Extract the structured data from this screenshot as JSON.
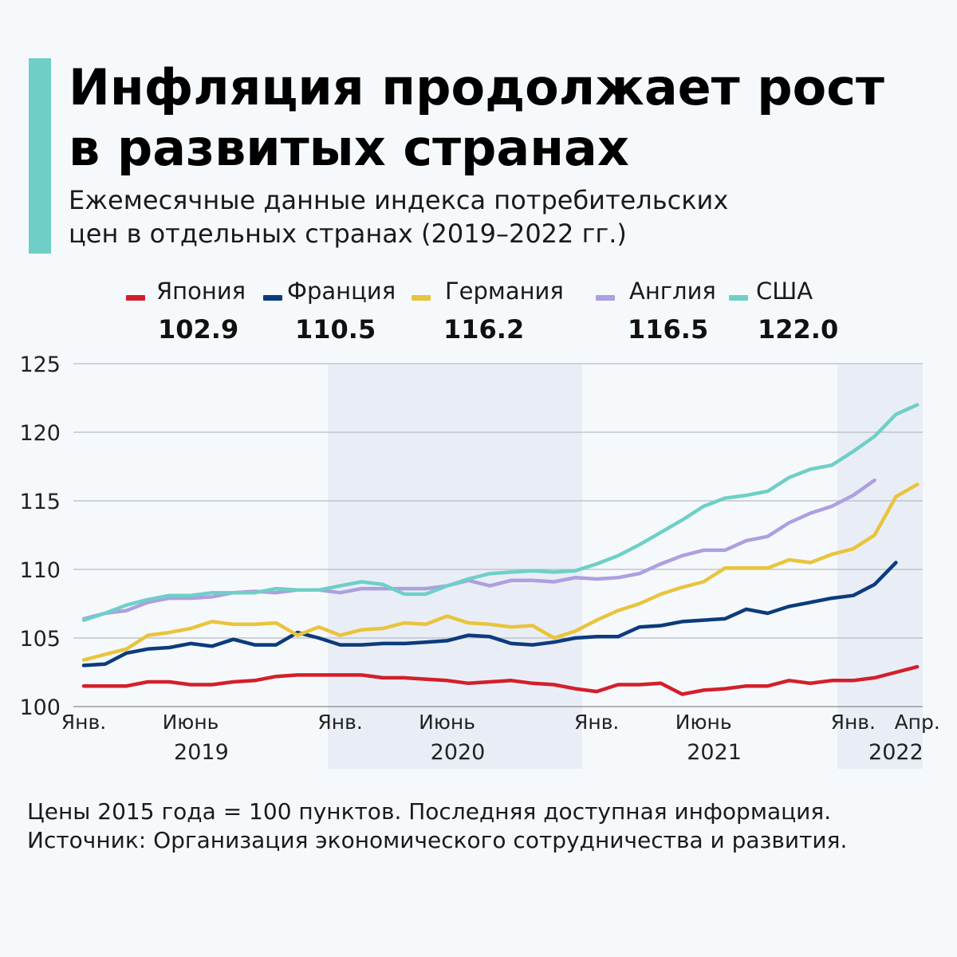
{
  "header": {
    "title_line1": "Инфляция продолжает рост",
    "title_line2": "в развитых странах",
    "subtitle_line1": "Ежемесячные данные индекса потребительских",
    "subtitle_line2": "цен в отдельных странах (2019–2022 гг.)",
    "accent_color": "#6fcfc8"
  },
  "legend": [
    {
      "name": "Япония",
      "value": "102.9",
      "color": "#d31f2b"
    },
    {
      "name": "Франция",
      "value": "110.5",
      "color": "#0c3b7d"
    },
    {
      "name": "Германия",
      "value": "116.2",
      "color": "#e9c43c"
    },
    {
      "name": "Англия",
      "value": "116.5",
      "color": "#ad9fe0"
    },
    {
      "name": "США",
      "value": "122.0",
      "color": "#6fcfc8"
    }
  ],
  "notes": {
    "line1": "Цены 2015 года = 100 пунктов. Последняя доступная информация.",
    "line2": "Источник: Организация экономического сотрудничества и развития."
  },
  "chart_data": {
    "type": "line",
    "ylim": [
      100,
      125
    ],
    "yticks": [
      100,
      105,
      110,
      115,
      120,
      125
    ],
    "grid": true,
    "legend_position": "top",
    "x_labels": [
      {
        "month_index": 0,
        "label": "Янв."
      },
      {
        "month_index": 5,
        "label": "Июнь"
      },
      {
        "month_index": 12,
        "label": "Янв."
      },
      {
        "month_index": 17,
        "label": "Июнь"
      },
      {
        "month_index": 24,
        "label": "Янв."
      },
      {
        "month_index": 29,
        "label": "Июнь"
      },
      {
        "month_index": 36,
        "label": "Янв."
      },
      {
        "month_index": 39,
        "label": "Апр."
      }
    ],
    "year_labels": [
      {
        "month_index": 5.5,
        "label": "2019"
      },
      {
        "month_index": 17.5,
        "label": "2020"
      },
      {
        "month_index": 29.5,
        "label": "2021"
      },
      {
        "month_index": 38,
        "label": "2022"
      }
    ],
    "shaded_years": [
      "2020",
      "2022"
    ],
    "series": [
      {
        "name": "Япония",
        "color": "#d31f2b",
        "values": [
          101.5,
          101.5,
          101.5,
          101.8,
          101.8,
          101.6,
          101.6,
          101.8,
          101.9,
          102.2,
          102.3,
          102.3,
          102.3,
          102.3,
          102.1,
          102.1,
          102.0,
          101.9,
          101.7,
          101.8,
          101.9,
          101.7,
          101.6,
          101.3,
          101.1,
          101.6,
          101.6,
          101.7,
          100.9,
          101.2,
          101.3,
          101.5,
          101.5,
          101.9,
          101.7,
          101.9,
          101.9,
          102.1,
          102.5,
          102.9
        ]
      },
      {
        "name": "Франция",
        "color": "#0c3b7d",
        "values": [
          103.0,
          103.1,
          103.9,
          104.2,
          104.3,
          104.6,
          104.4,
          104.9,
          104.5,
          104.5,
          105.4,
          105.0,
          104.5,
          104.5,
          104.6,
          104.6,
          104.7,
          104.8,
          105.2,
          105.1,
          104.6,
          104.5,
          104.7,
          105.0,
          105.1,
          105.1,
          105.8,
          105.9,
          106.2,
          106.3,
          106.4,
          107.1,
          106.8,
          107.3,
          107.6,
          107.9,
          108.1,
          108.9,
          110.5
        ]
      },
      {
        "name": "Германия",
        "color": "#e9c43c",
        "values": [
          103.4,
          103.8,
          104.2,
          105.2,
          105.4,
          105.7,
          106.2,
          106.0,
          106.0,
          106.1,
          105.2,
          105.8,
          105.2,
          105.6,
          105.7,
          106.1,
          106.0,
          106.6,
          106.1,
          106.0,
          105.8,
          105.9,
          105.0,
          105.5,
          106.3,
          107.0,
          107.5,
          108.2,
          108.7,
          109.1,
          110.1,
          110.1,
          110.1,
          110.7,
          110.5,
          111.1,
          111.5,
          112.5,
          115.3,
          116.2
        ]
      },
      {
        "name": "Англия",
        "color": "#ad9fe0",
        "values": [
          106.4,
          106.8,
          107.0,
          107.6,
          107.9,
          107.9,
          108.0,
          108.3,
          108.4,
          108.3,
          108.5,
          108.5,
          108.3,
          108.6,
          108.6,
          108.6,
          108.6,
          108.8,
          109.2,
          108.8,
          109.2,
          109.2,
          109.1,
          109.4,
          109.3,
          109.4,
          109.7,
          110.4,
          111.0,
          111.4,
          111.4,
          112.1,
          112.4,
          113.4,
          114.1,
          114.6,
          115.4,
          116.5
        ]
      },
      {
        "name": "США",
        "color": "#6fcfc8",
        "values": [
          106.3,
          106.8,
          107.4,
          107.8,
          108.1,
          108.1,
          108.3,
          108.3,
          108.3,
          108.6,
          108.5,
          108.5,
          108.8,
          109.1,
          108.9,
          108.2,
          108.2,
          108.8,
          109.3,
          109.7,
          109.8,
          109.9,
          109.8,
          109.9,
          110.4,
          111.0,
          111.8,
          112.7,
          113.6,
          114.6,
          115.2,
          115.4,
          115.7,
          116.7,
          117.3,
          117.6,
          118.6,
          119.7,
          121.3,
          122.0
        ]
      }
    ]
  }
}
